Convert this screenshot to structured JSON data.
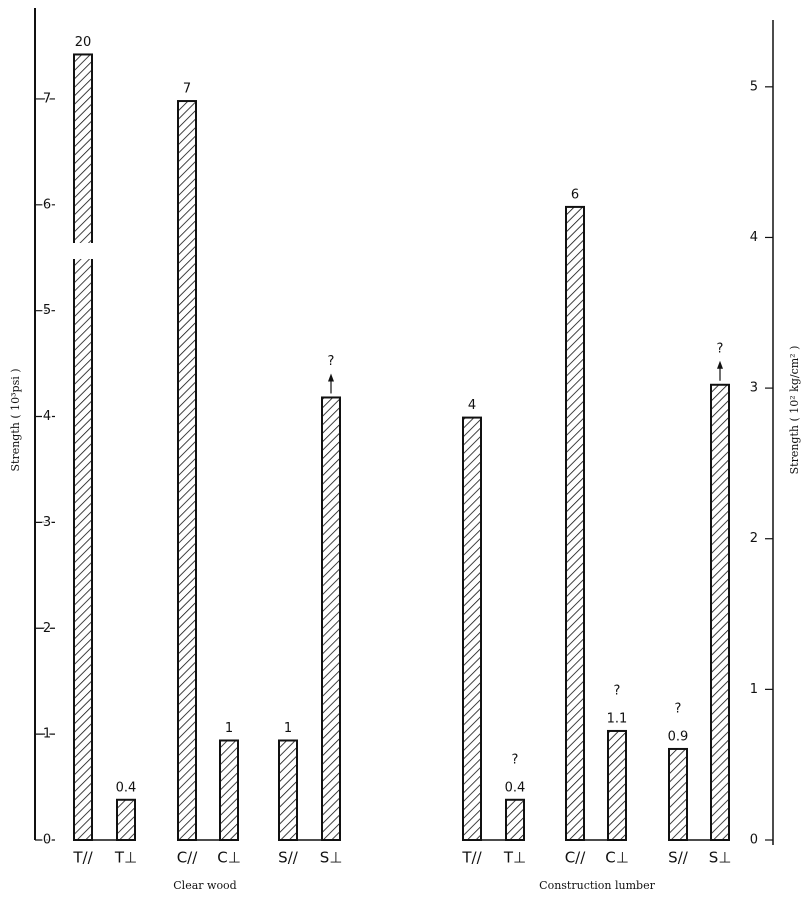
{
  "chart_data": {
    "type": "bar",
    "ylabel": "Strength ( 10³psi )",
    "y2label": "Strength ( 10² kg/cm² )",
    "ylim": [
      0,
      7.84
    ],
    "yticks": [
      0,
      1,
      2,
      3,
      4,
      5,
      6,
      7
    ],
    "y2lim": [
      0,
      5.51
    ],
    "y2ticks": [
      0,
      1,
      2,
      3,
      4,
      5
    ],
    "color": "#111111",
    "groups": [
      {
        "name": "Clear wood",
        "categories": [
          "T//",
          "T⊥",
          "C//",
          "C⊥",
          "S//",
          "S⊥"
        ],
        "values": [
          7.42,
          0.38,
          6.98,
          0.94,
          0.94,
          4.18
        ],
        "notes": [
          [
            "20"
          ],
          [
            "0.4"
          ],
          [
            "7"
          ],
          [
            "1"
          ],
          [
            "1"
          ],
          [
            "?"
          ]
        ],
        "broken": [
          true,
          false,
          false,
          false,
          false,
          false
        ],
        "open_top": [
          false,
          false,
          false,
          false,
          false,
          true
        ]
      },
      {
        "name": "Construction lumber",
        "categories": [
          "T//",
          "T⊥",
          "C//",
          "C⊥",
          "S//",
          "S⊥"
        ],
        "values": [
          3.99,
          0.38,
          5.98,
          1.03,
          0.86,
          4.3
        ],
        "notes": [
          [
            "4"
          ],
          [
            "?",
            "0.4"
          ],
          [
            "6"
          ],
          [
            "?",
            "1.1"
          ],
          [
            "?",
            "0.9"
          ],
          [
            "?"
          ]
        ],
        "broken": [
          false,
          false,
          false,
          false,
          false,
          false
        ],
        "open_top": [
          false,
          false,
          false,
          false,
          false,
          true
        ]
      }
    ]
  }
}
